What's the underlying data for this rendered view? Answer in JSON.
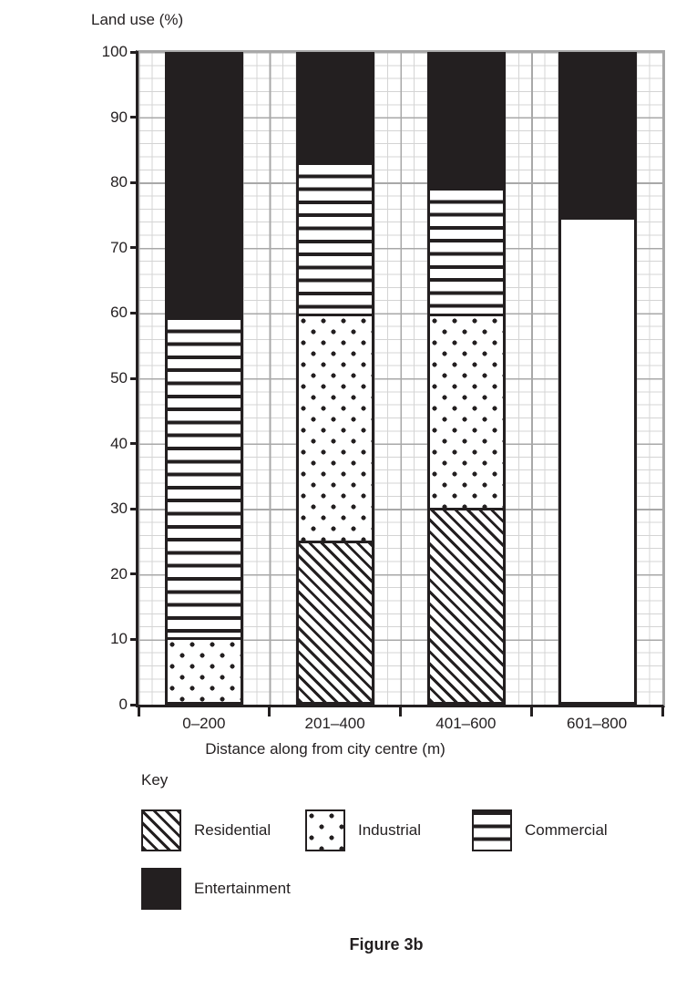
{
  "page": {
    "figure_caption": "Figure 3b"
  },
  "chart": {
    "title": "Land use (%)",
    "x_axis_title": "Distance along from city centre (m)",
    "key_label": "Key"
  },
  "chart_data": {
    "type": "bar",
    "stacked": true,
    "title": "Land use (%)",
    "xlabel": "Distance along from city centre (m)",
    "ylabel": "Land use (%)",
    "ylim": [
      0,
      100
    ],
    "yticks": [
      0,
      10,
      20,
      30,
      40,
      50,
      60,
      70,
      80,
      90,
      100
    ],
    "grid": "minor lines every 2%, major lines every 10%, on",
    "legend_position": "below chart, labelled Key",
    "categories": [
      "0–200",
      "201–400",
      "401–600",
      "601–800"
    ],
    "series": [
      {
        "name": "Residential",
        "pattern": "diagonal-hatch",
        "values": [
          0,
          25,
          30,
          0
        ]
      },
      {
        "name": "Industrial",
        "pattern": "dots",
        "values": [
          10,
          35,
          30,
          0
        ]
      },
      {
        "name": "Commercial",
        "pattern": "horizontal-stripes",
        "values": [
          50,
          24,
          20,
          0
        ]
      },
      {
        "name": "Unshaded",
        "pattern": "blank",
        "in_key": false,
        "values": [
          0,
          0,
          0,
          75
        ]
      },
      {
        "name": "Entertainment",
        "pattern": "solid-black",
        "values": [
          40,
          16,
          20,
          25
        ]
      }
    ],
    "legend": [
      "Residential",
      "Industrial",
      "Commercial",
      "Entertainment"
    ],
    "colors": {
      "ink": "#231f20",
      "grid_minor": "#d4d4d4",
      "grid_major": "#a8a8a8",
      "background": "#ffffff"
    }
  }
}
